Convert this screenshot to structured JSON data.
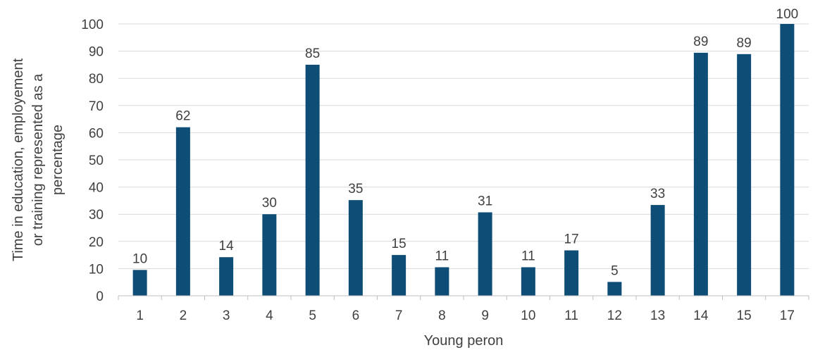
{
  "chart_data": {
    "type": "bar",
    "title": "",
    "xlabel": "Young peron",
    "ylabel_lines": [
      "Time in education, employement",
      "or training represented as a",
      "percentage"
    ],
    "categories": [
      "1",
      "2",
      "3",
      "4",
      "5",
      "6",
      "7",
      "8",
      "9",
      "10",
      "11",
      "12",
      "13",
      "14",
      "15",
      "17"
    ],
    "values": [
      9.5,
      62,
      14.2,
      30,
      85,
      35.2,
      15,
      10.5,
      30.7,
      10.5,
      16.7,
      5.1,
      33.4,
      89.4,
      88.9,
      100
    ],
    "data_labels": [
      "10",
      "62",
      "14",
      "30",
      "85",
      "35",
      "15",
      "11",
      "31",
      "11",
      "17",
      "5",
      "33",
      "89",
      "89",
      "100"
    ],
    "yticks": [
      "0",
      "10",
      "20",
      "30",
      "40",
      "50",
      "60",
      "70",
      "80",
      "90",
      "100"
    ],
    "ylim": [
      0,
      100
    ],
    "grid": true,
    "legend": "none",
    "bar_color": "#0e4d75"
  }
}
